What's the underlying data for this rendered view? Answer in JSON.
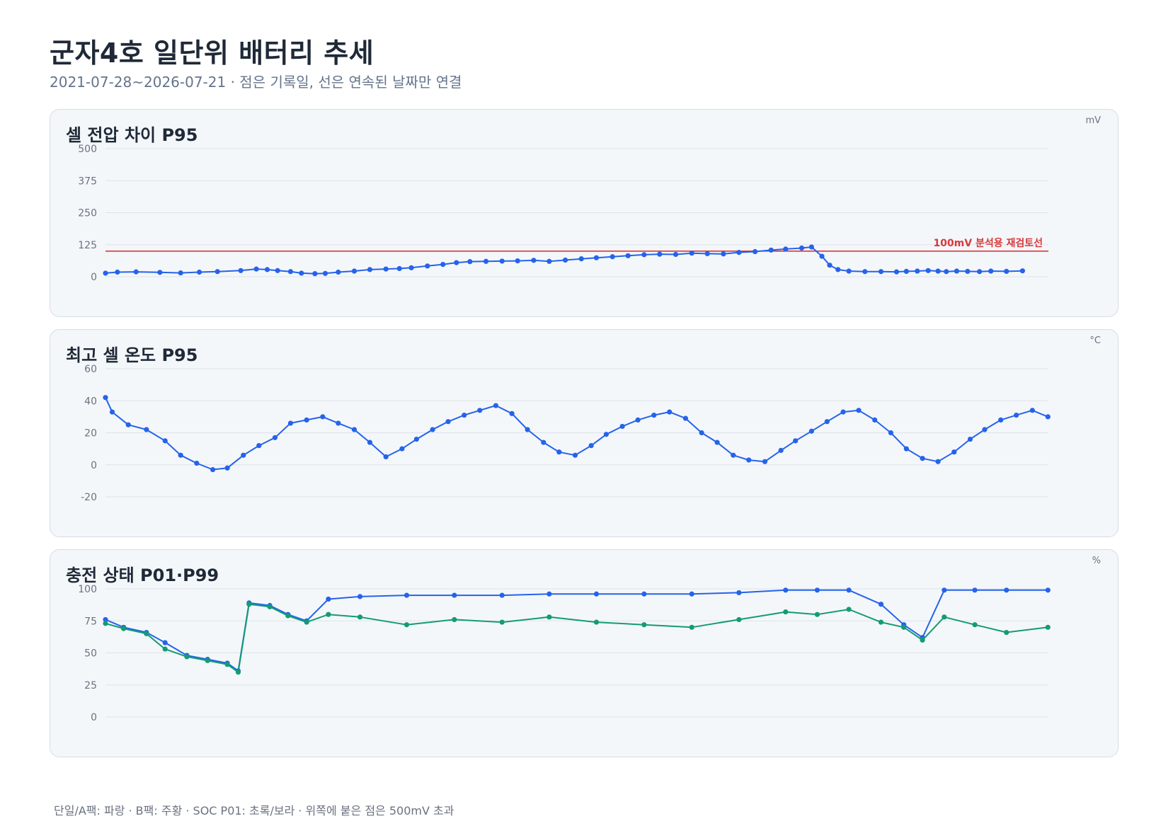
{
  "title": "군자4호 일단위 배터리 추세",
  "subtitle": "2021-07-28~2026-07-21 · 점은 기록일, 선은 연속된 날짜만 연결",
  "footnote": "단일/A팩: 파랑 · B팩: 주황 · SOC P01: 초록/보라 · 위쪽에 붙은 점은 500mV 초과",
  "colors": {
    "series_a": "#2563eb",
    "series_soc_low": "#139c73",
    "threshold": "#d9383a",
    "grid": "#dde3ea"
  },
  "panels": [
    {
      "title": "셀 전압 차이 P95",
      "unit": "mV"
    },
    {
      "title": "최고 셀 온도 P95",
      "unit": "°C"
    },
    {
      "title": "충전 상태 P01·P99",
      "unit": "%"
    }
  ],
  "chart_data": [
    {
      "type": "scatter",
      "title": "셀 전압 차이 P95",
      "unit": "mV",
      "x_range": [
        "2021-07-28",
        "2026-07-21"
      ],
      "ylim": [
        0,
        500
      ],
      "yticks": [
        "0",
        "125",
        "250",
        "375",
        "500"
      ],
      "grid": true,
      "threshold": {
        "value": 100,
        "label": "100mV 분석용 재검토선"
      },
      "series": [
        {
          "color": "#2563eb",
          "points": [
            [
              "2021-07-28",
              14
            ],
            [
              "2021-08-20",
              18
            ],
            [
              "2021-09-25",
              19
            ],
            [
              "2021-11-10",
              17
            ],
            [
              "2021-12-20",
              15
            ],
            [
              "2022-01-25",
              18
            ],
            [
              "2022-03-01",
              20
            ],
            [
              "2022-04-15",
              24
            ],
            [
              "2022-05-15",
              30
            ],
            [
              "2022-06-05",
              28
            ],
            [
              "2022-06-25",
              24
            ],
            [
              "2022-07-20",
              20
            ],
            [
              "2022-08-10",
              14
            ],
            [
              "2022-09-05",
              12
            ],
            [
              "2022-09-25",
              13
            ],
            [
              "2022-10-20",
              18
            ],
            [
              "2022-11-20",
              22
            ],
            [
              "2022-12-20",
              28
            ],
            [
              "2023-01-20",
              30
            ],
            [
              "2023-02-15",
              32
            ],
            [
              "2023-03-10",
              35
            ],
            [
              "2023-04-10",
              42
            ],
            [
              "2023-05-10",
              48
            ],
            [
              "2023-06-05",
              55
            ],
            [
              "2023-07-01",
              59
            ],
            [
              "2023-08-01",
              60
            ],
            [
              "2023-09-01",
              61
            ],
            [
              "2023-10-01",
              62
            ],
            [
              "2023-11-01",
              64
            ],
            [
              "2023-12-01",
              60
            ],
            [
              "2024-01-01",
              65
            ],
            [
              "2024-02-01",
              70
            ],
            [
              "2024-03-01",
              74
            ],
            [
              "2024-04-01",
              78
            ],
            [
              "2024-05-01",
              82
            ],
            [
              "2024-06-01",
              86
            ],
            [
              "2024-07-01",
              88
            ],
            [
              "2024-08-01",
              87
            ],
            [
              "2024-09-01",
              92
            ],
            [
              "2024-10-01",
              90
            ],
            [
              "2024-11-01",
              89
            ],
            [
              "2024-12-01",
              95
            ],
            [
              "2025-01-01",
              98
            ],
            [
              "2025-02-01",
              104
            ],
            [
              "2025-03-01",
              108
            ],
            [
              "2025-04-01",
              112
            ],
            [
              "2025-04-20",
              116
            ],
            [
              "2025-05-10",
              80
            ],
            [
              "2025-05-25",
              45
            ],
            [
              "2025-06-10",
              28
            ],
            [
              "2025-07-01",
              22
            ],
            [
              "2025-08-01",
              20
            ],
            [
              "2025-09-01",
              20
            ],
            [
              "2025-10-01",
              19
            ],
            [
              "2025-10-20",
              21
            ],
            [
              "2025-11-10",
              22
            ],
            [
              "2025-12-01",
              24
            ],
            [
              "2025-12-20",
              22
            ],
            [
              "2026-01-05",
              20
            ],
            [
              "2026-01-25",
              22
            ],
            [
              "2026-02-15",
              21
            ],
            [
              "2026-03-10",
              20
            ],
            [
              "2026-04-01",
              22
            ],
            [
              "2026-05-01",
              21
            ],
            [
              "2026-06-01",
              23
            ]
          ]
        }
      ]
    },
    {
      "type": "scatter",
      "title": "최고 셀 온도 P95",
      "unit": "°C",
      "x_range": [
        "2021-07-28",
        "2026-07-21"
      ],
      "ylim": [
        -20,
        60
      ],
      "yticks": [
        "-20",
        "0",
        "20",
        "40",
        "60"
      ],
      "grid": true,
      "series": [
        {
          "color": "#2563eb",
          "points": [
            [
              "2021-07-28",
              42
            ],
            [
              "2021-08-10",
              33
            ],
            [
              "2021-09-10",
              25
            ],
            [
              "2021-10-15",
              22
            ],
            [
              "2021-11-20",
              15
            ],
            [
              "2021-12-20",
              6
            ],
            [
              "2022-01-20",
              1
            ],
            [
              "2022-02-20",
              -3
            ],
            [
              "2022-03-20",
              -2
            ],
            [
              "2022-04-20",
              6
            ],
            [
              "2022-05-20",
              12
            ],
            [
              "2022-06-20",
              17
            ],
            [
              "2022-07-20",
              26
            ],
            [
              "2022-08-20",
              28
            ],
            [
              "2022-09-20",
              30
            ],
            [
              "2022-10-20",
              26
            ],
            [
              "2022-11-20",
              22
            ],
            [
              "2022-12-20",
              14
            ],
            [
              "2023-01-20",
              5
            ],
            [
              "2023-02-20",
              10
            ],
            [
              "2023-03-20",
              16
            ],
            [
              "2023-04-20",
              22
            ],
            [
              "2023-05-20",
              27
            ],
            [
              "2023-06-20",
              31
            ],
            [
              "2023-07-20",
              34
            ],
            [
              "2023-08-20",
              37
            ],
            [
              "2023-09-20",
              32
            ],
            [
              "2023-10-20",
              22
            ],
            [
              "2023-11-20",
              14
            ],
            [
              "2023-12-20",
              8
            ],
            [
              "2024-01-20",
              6
            ],
            [
              "2024-02-20",
              12
            ],
            [
              "2024-03-20",
              19
            ],
            [
              "2024-04-20",
              24
            ],
            [
              "2024-05-20",
              28
            ],
            [
              "2024-06-20",
              31
            ],
            [
              "2024-07-20",
              33
            ],
            [
              "2024-08-20",
              29
            ],
            [
              "2024-09-20",
              20
            ],
            [
              "2024-10-20",
              14
            ],
            [
              "2024-11-20",
              6
            ],
            [
              "2024-12-20",
              3
            ],
            [
              "2025-01-20",
              2
            ],
            [
              "2025-02-20",
              9
            ],
            [
              "2025-03-20",
              15
            ],
            [
              "2025-04-20",
              21
            ],
            [
              "2025-05-20",
              27
            ],
            [
              "2025-06-20",
              33
            ],
            [
              "2025-07-20",
              34
            ],
            [
              "2025-08-20",
              28
            ],
            [
              "2025-09-20",
              20
            ],
            [
              "2025-10-20",
              10
            ],
            [
              "2025-11-20",
              4
            ],
            [
              "2025-12-20",
              2
            ],
            [
              "2026-01-20",
              8
            ],
            [
              "2026-02-20",
              16
            ],
            [
              "2026-03-20",
              22
            ],
            [
              "2026-04-20",
              28
            ],
            [
              "2026-05-20",
              31
            ],
            [
              "2026-06-20",
              34
            ],
            [
              "2026-07-20",
              30
            ]
          ]
        }
      ]
    },
    {
      "type": "scatter",
      "title": "충전 상태 P01·P99",
      "unit": "%",
      "x_range": [
        "2021-07-28",
        "2026-07-21"
      ],
      "ylim": [
        0,
        100
      ],
      "yticks": [
        "0",
        "25",
        "50",
        "75",
        "100"
      ],
      "grid": true,
      "series": [
        {
          "color": "#2563eb",
          "points": [
            [
              "2021-07-28",
              76
            ],
            [
              "2021-09-01",
              70
            ],
            [
              "2021-10-15",
              66
            ],
            [
              "2021-11-20",
              58
            ],
            [
              "2022-01-01",
              48
            ],
            [
              "2022-02-10",
              45
            ],
            [
              "2022-03-20",
              42
            ],
            [
              "2022-04-10",
              36
            ],
            [
              "2022-05-01",
              89
            ],
            [
              "2022-06-10",
              87
            ],
            [
              "2022-07-15",
              80
            ],
            [
              "2022-08-20",
              75
            ],
            [
              "2022-10-01",
              92
            ],
            [
              "2022-12-01",
              94
            ],
            [
              "2023-03-01",
              95
            ],
            [
              "2023-06-01",
              95
            ],
            [
              "2023-09-01",
              95
            ],
            [
              "2023-12-01",
              96
            ],
            [
              "2024-03-01",
              96
            ],
            [
              "2024-06-01",
              96
            ],
            [
              "2024-09-01",
              96
            ],
            [
              "2024-12-01",
              97
            ],
            [
              "2025-03-01",
              99
            ],
            [
              "2025-05-01",
              99
            ],
            [
              "2025-07-01",
              99
            ],
            [
              "2025-09-01",
              88
            ],
            [
              "2025-10-15",
              72
            ],
            [
              "2025-11-20",
              62
            ],
            [
              "2026-01-01",
              99
            ],
            [
              "2026-03-01",
              99
            ],
            [
              "2026-05-01",
              99
            ],
            [
              "2026-07-20",
              99
            ]
          ]
        },
        {
          "color": "#139c73",
          "points": [
            [
              "2021-07-28",
              73
            ],
            [
              "2021-09-01",
              69
            ],
            [
              "2021-10-15",
              65
            ],
            [
              "2021-11-20",
              53
            ],
            [
              "2022-01-01",
              47
            ],
            [
              "2022-02-10",
              44
            ],
            [
              "2022-03-20",
              41
            ],
            [
              "2022-04-10",
              35
            ],
            [
              "2022-05-01",
              88
            ],
            [
              "2022-06-10",
              86
            ],
            [
              "2022-07-15",
              79
            ],
            [
              "2022-08-20",
              74
            ],
            [
              "2022-10-01",
              80
            ],
            [
              "2022-12-01",
              78
            ],
            [
              "2023-03-01",
              72
            ],
            [
              "2023-06-01",
              76
            ],
            [
              "2023-09-01",
              74
            ],
            [
              "2023-12-01",
              78
            ],
            [
              "2024-03-01",
              74
            ],
            [
              "2024-06-01",
              72
            ],
            [
              "2024-09-01",
              70
            ],
            [
              "2024-12-01",
              76
            ],
            [
              "2025-03-01",
              82
            ],
            [
              "2025-05-01",
              80
            ],
            [
              "2025-07-01",
              84
            ],
            [
              "2025-09-01",
              74
            ],
            [
              "2025-10-15",
              70
            ],
            [
              "2025-11-20",
              60
            ],
            [
              "2026-01-01",
              78
            ],
            [
              "2026-03-01",
              72
            ],
            [
              "2026-05-01",
              66
            ],
            [
              "2026-07-20",
              70
            ]
          ]
        }
      ]
    }
  ]
}
